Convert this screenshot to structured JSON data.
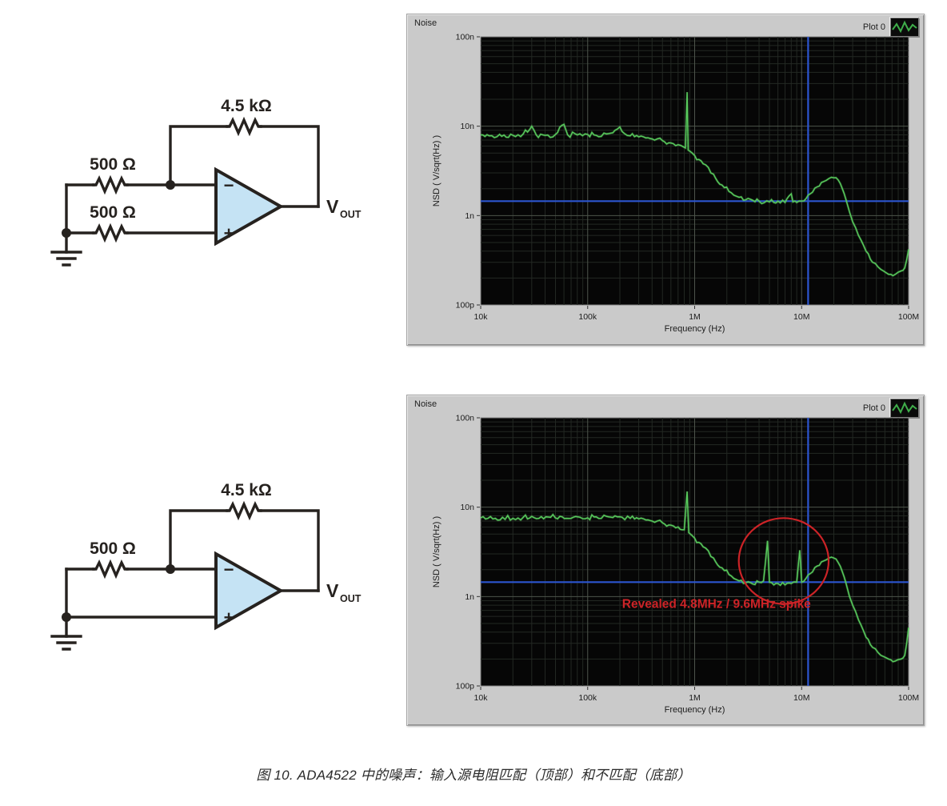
{
  "figure_caption": "图 10. ADA4522 中的噪声：输入源电阻匹配（顶部）和不匹配（底部）",
  "circuits": {
    "top": {
      "feedback_r": "4.5 kΩ",
      "r_inverting": "500 Ω",
      "r_noninverting": "500 Ω",
      "minus_symbol": "−",
      "plus_symbol": "+",
      "output_v": "V",
      "output_sub": "OUT"
    },
    "bottom": {
      "feedback_r": "4.5 kΩ",
      "r_inverting": "500 Ω",
      "minus_symbol": "−",
      "plus_symbol": "+",
      "output_v": "V",
      "output_sub": "OUT"
    }
  },
  "plots": [
    {
      "window_label": "Noise",
      "legend_label": "Plot 0"
    },
    {
      "window_label": "Noise",
      "legend_label": "Plot 0"
    }
  ],
  "colors": {
    "trace_green": "#58c95c",
    "cursor_blue": "#2c55cf",
    "annotation_red": "#cc2327",
    "plot_background": "#060606",
    "grid_minor": "#232823",
    "grid_major": "#4d544b",
    "panel_gray": "#cacaca"
  },
  "chart_data": [
    {
      "type": "line",
      "log_x": true,
      "log_y": true,
      "xlabel": "Frequency (Hz)",
      "ylabel": "NSD ( V/sqrt(Hz) )",
      "xlim_hz": [
        10000,
        100000000
      ],
      "ylim_v": [
        1e-10,
        1e-07
      ],
      "x_ticks": [
        "10k",
        "100k",
        "1M",
        "10M",
        "100M"
      ],
      "y_ticks": [
        "100n",
        "10n",
        "1n",
        "100p"
      ],
      "cursor": {
        "freq_hz": 11500000,
        "nsd_v": 1.45e-09
      },
      "series": [
        {
          "name": "Plot 0",
          "points": [
            [
              10000,
              8e-09
            ],
            [
              12000,
              7.8e-09
            ],
            [
              15000,
              8.1e-09
            ],
            [
              20000,
              7.9e-09
            ],
            [
              25000,
              8.2e-09
            ],
            [
              30000,
              1e-08
            ],
            [
              33000,
              8e-09
            ],
            [
              40000,
              7.9e-09
            ],
            [
              50000,
              8.1e-09
            ],
            [
              60000,
              1.05e-08
            ],
            [
              65000,
              8e-09
            ],
            [
              80000,
              8e-09
            ],
            [
              100000,
              8.1e-09
            ],
            [
              120000,
              7.9e-09
            ],
            [
              150000,
              8.2e-09
            ],
            [
              180000,
              9e-09
            ],
            [
              200000,
              9.8e-09
            ],
            [
              220000,
              8.3e-09
            ],
            [
              250000,
              7.8e-09
            ],
            [
              300000,
              7.6e-09
            ],
            [
              350000,
              7.4e-09
            ],
            [
              400000,
              7.2e-09
            ],
            [
              500000,
              6.9e-09
            ],
            [
              600000,
              6.5e-09
            ],
            [
              700000,
              6.2e-09
            ],
            [
              780000,
              5.9e-09
            ],
            [
              820000,
              5.7e-09
            ],
            [
              850000,
              2.4e-08
            ],
            [
              870000,
              5.4e-09
            ],
            [
              950000,
              5e-09
            ],
            [
              1000000,
              4.7e-09
            ],
            [
              1200000,
              3.8e-09
            ],
            [
              1500000,
              2.9e-09
            ],
            [
              1800000,
              2.2e-09
            ],
            [
              2200000,
              1.8e-09
            ],
            [
              2600000,
              1.6e-09
            ],
            [
              3000000,
              1.5e-09
            ],
            [
              3500000,
              1.48e-09
            ],
            [
              4000000,
              1.45e-09
            ],
            [
              5000000,
              1.42e-09
            ],
            [
              6000000,
              1.45e-09
            ],
            [
              7000000,
              1.4e-09
            ],
            [
              8000000,
              1.75e-09
            ],
            [
              8300000,
              1.42e-09
            ],
            [
              9000000,
              1.4e-09
            ],
            [
              10000000,
              1.45e-09
            ],
            [
              11000000,
              1.55e-09
            ],
            [
              12000000,
              1.75e-09
            ],
            [
              14000000,
              2.1e-09
            ],
            [
              16000000,
              2.4e-09
            ],
            [
              18000000,
              2.6e-09
            ],
            [
              20000000,
              2.65e-09
            ],
            [
              22000000,
              2.5e-09
            ],
            [
              24000000,
              2e-09
            ],
            [
              26000000,
              1.5e-09
            ],
            [
              28000000,
              1.1e-09
            ],
            [
              30000000,
              8.5e-10
            ],
            [
              34000000,
              6e-10
            ],
            [
              40000000,
              4e-10
            ],
            [
              46000000,
              3e-10
            ],
            [
              55000000,
              2.5e-10
            ],
            [
              65000000,
              2.2e-10
            ],
            [
              75000000,
              2.2e-10
            ],
            [
              85000000,
              2.4e-10
            ],
            [
              92000000,
              2.6e-10
            ],
            [
              96000000,
              3.2e-10
            ],
            [
              100000000,
              4.2e-10
            ]
          ]
        }
      ]
    },
    {
      "type": "line",
      "log_x": true,
      "log_y": true,
      "xlabel": "Frequency (Hz)",
      "ylabel": "NSD ( V/sqrt(Hz) )",
      "xlim_hz": [
        10000,
        100000000
      ],
      "ylim_v": [
        1e-10,
        1e-07
      ],
      "x_ticks": [
        "10k",
        "100k",
        "1M",
        "10M",
        "100M"
      ],
      "y_ticks": [
        "100n",
        "10n",
        "1n",
        "100p"
      ],
      "cursor": {
        "freq_hz": 11500000,
        "nsd_v": 1.45e-09
      },
      "annotation": {
        "text": "Revealed 4.8MHz / 9.6MHz spike",
        "text_x_hz": 1600000,
        "text_y_nsd": 7.5e-10,
        "circle_x_hz": 6800000,
        "circle_y_nsd": 2.5e-09,
        "circle_rx_decades": 0.42,
        "circle_ry_decades": 0.48
      },
      "series": [
        {
          "name": "Plot 0",
          "points": [
            [
              10000,
              7.6e-09
            ],
            [
              13000,
              7.4e-09
            ],
            [
              16000,
              7.7e-09
            ],
            [
              20000,
              7.5e-09
            ],
            [
              25000,
              7.7e-09
            ],
            [
              30000,
              7.9e-09
            ],
            [
              35000,
              7.5e-09
            ],
            [
              45000,
              7.7e-09
            ],
            [
              55000,
              7.9e-09
            ],
            [
              70000,
              7.5e-09
            ],
            [
              85000,
              7.7e-09
            ],
            [
              100000,
              7.6e-09
            ],
            [
              120000,
              7.8e-09
            ],
            [
              150000,
              7.9e-09
            ],
            [
              180000,
              8e-09
            ],
            [
              210000,
              7.7e-09
            ],
            [
              250000,
              7.5e-09
            ],
            [
              300000,
              7.4e-09
            ],
            [
              350000,
              7.2e-09
            ],
            [
              400000,
              7e-09
            ],
            [
              500000,
              6.7e-09
            ],
            [
              600000,
              6.3e-09
            ],
            [
              700000,
              6e-09
            ],
            [
              800000,
              5.6e-09
            ],
            [
              850000,
              1.5e-08
            ],
            [
              880000,
              5.2e-09
            ],
            [
              950000,
              4.8e-09
            ],
            [
              1000000,
              4.5e-09
            ],
            [
              1200000,
              3.6e-09
            ],
            [
              1500000,
              2.7e-09
            ],
            [
              1800000,
              2.1e-09
            ],
            [
              2200000,
              1.7e-09
            ],
            [
              2600000,
              1.5e-09
            ],
            [
              3000000,
              1.42e-09
            ],
            [
              3500000,
              1.38e-09
            ],
            [
              4000000,
              1.45e-09
            ],
            [
              4400000,
              1.5e-09
            ],
            [
              4800000,
              4.2e-09
            ],
            [
              5000000,
              1.45e-09
            ],
            [
              5500000,
              1.35e-09
            ],
            [
              6000000,
              1.4e-09
            ],
            [
              7000000,
              1.35e-09
            ],
            [
              8000000,
              1.4e-09
            ],
            [
              9000000,
              1.45e-09
            ],
            [
              9600000,
              3.3e-09
            ],
            [
              10000000,
              1.45e-09
            ],
            [
              11000000,
              1.6e-09
            ],
            [
              12000000,
              1.8e-09
            ],
            [
              14000000,
              2.2e-09
            ],
            [
              16000000,
              2.5e-09
            ],
            [
              18000000,
              2.7e-09
            ],
            [
              20000000,
              2.7e-09
            ],
            [
              22000000,
              2.4e-09
            ],
            [
              24000000,
              1.9e-09
            ],
            [
              26000000,
              1.4e-09
            ],
            [
              28000000,
              1e-09
            ],
            [
              30000000,
              8e-10
            ],
            [
              34000000,
              5.5e-10
            ],
            [
              40000000,
              3.5e-10
            ],
            [
              46000000,
              2.7e-10
            ],
            [
              55000000,
              2.2e-10
            ],
            [
              65000000,
              2e-10
            ],
            [
              75000000,
              1.9e-10
            ],
            [
              85000000,
              2e-10
            ],
            [
              92000000,
              2.2e-10
            ],
            [
              96000000,
              3e-10
            ],
            [
              100000000,
              4.5e-10
            ]
          ]
        }
      ]
    }
  ]
}
